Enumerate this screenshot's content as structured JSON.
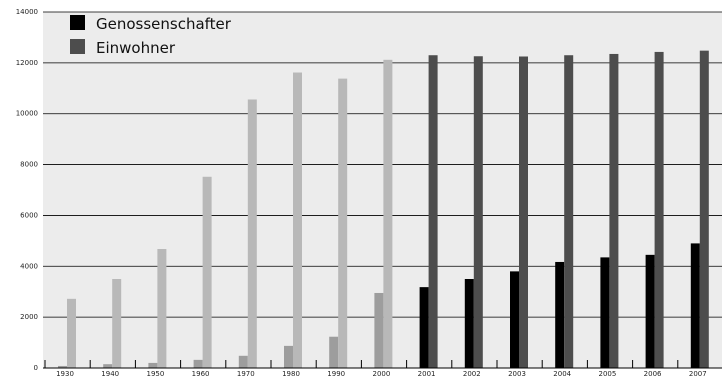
{
  "chart_data": {
    "type": "bar",
    "categories": [
      "1930",
      "1940",
      "1950",
      "1960",
      "1970",
      "1980",
      "1990",
      "2000",
      "2001",
      "2002",
      "2003",
      "2004",
      "2005",
      "2006",
      "2007"
    ],
    "series": [
      {
        "name": "Genossenschafter",
        "values": [
          80,
          150,
          200,
          320,
          480,
          870,
          1230,
          2950,
          3180,
          3500,
          3800,
          4170,
          4350,
          4450,
          4900
        ]
      },
      {
        "name": "Einwohner",
        "values": [
          2720,
          3500,
          4680,
          7520,
          10560,
          11620,
          11380,
          12120,
          12300,
          12260,
          12250,
          12300,
          12350,
          12430,
          12480
        ]
      }
    ],
    "colors": {
      "genossenschafter_early": "#9d9d9d",
      "einwohner_early": "#b8b8b8",
      "genossenschafter_late": "#000000",
      "einwohner_late": "#4d4d4d",
      "plot_background": "#ececec",
      "grid": "#000000"
    },
    "highlight_from_category": "2001",
    "ylim": [
      0,
      14000
    ],
    "yticks": [
      "0",
      "2000",
      "4000",
      "6000",
      "8000",
      "10000",
      "12000",
      "14000"
    ],
    "grid": true,
    "legend_position": "top-left",
    "title": "",
    "xlabel": "",
    "ylabel": ""
  }
}
